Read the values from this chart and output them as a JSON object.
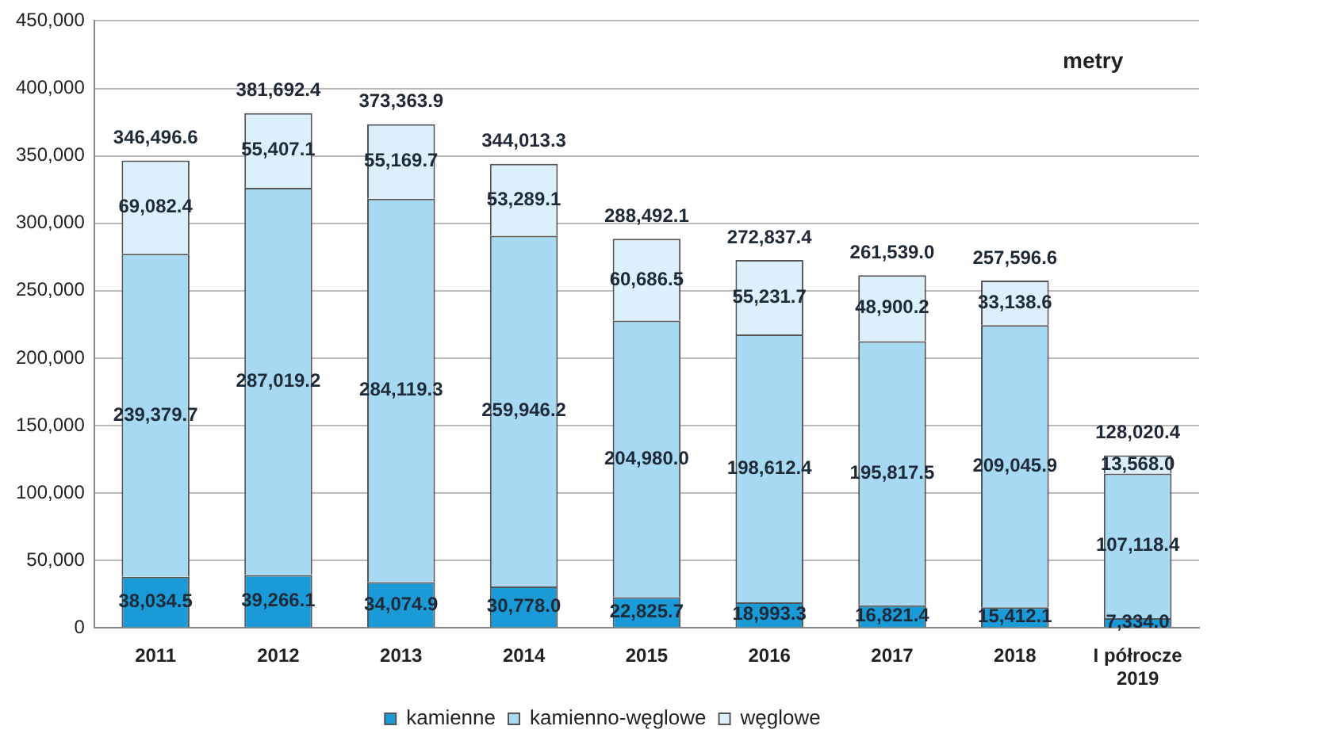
{
  "chart_data": {
    "type": "bar",
    "stacked": true,
    "categories": [
      "2011",
      "2012",
      "2013",
      "2014",
      "2015",
      "2016",
      "2017",
      "2018",
      "I półrocze 2019"
    ],
    "series": [
      {
        "name": "kamienne",
        "color": "#1a9ad6",
        "values": [
          38034.5,
          39266.1,
          34074.9,
          30778.0,
          22825.7,
          18993.3,
          16821.4,
          15412.1,
          7334.0
        ],
        "value_labels": [
          "38,034.5",
          "39,266.1",
          "34,074.9",
          "30,778.0",
          "22,825.7",
          "18,993.3",
          "16,821.4",
          "15,412.1",
          "7,334.0"
        ]
      },
      {
        "name": "kamienno-węglowe",
        "color": "#a7d9f3",
        "values": [
          239379.7,
          287019.2,
          284119.3,
          259946.2,
          204980.0,
          198612.4,
          195817.5,
          209045.9,
          107118.4
        ],
        "value_labels": [
          "239,379.7",
          "287,019.2",
          "284,119.3",
          "259,946.2",
          "204,980.0",
          "198,612.4",
          "195,817.5",
          "209,045.9",
          "107,118.4"
        ]
      },
      {
        "name": "węglowe",
        "color": "#dcf0fb",
        "values": [
          69082.4,
          55407.1,
          55169.7,
          53289.1,
          60686.5,
          55231.7,
          48900.2,
          33138.6,
          13568.0
        ],
        "value_labels": [
          "69,082.4",
          "55,407.1",
          "55,169.7",
          "53,289.1",
          "60,686.5",
          "55,231.7",
          "48,900.2",
          "33,138.6",
          "13,568.0"
        ]
      }
    ],
    "totals": [
      "346,496.6",
      "381,692.4",
      "373,363.9",
      "344,013.3",
      "288,492.1",
      "272,837.4",
      "261,539.0",
      "257,596.6",
      "128,020.4"
    ],
    "ylim": [
      0,
      450000
    ],
    "yticks": [
      0,
      {
        "value": 50000,
        "label": "50,000"
      },
      {
        "value": 100000,
        "label": "100,000"
      },
      {
        "value": 150000,
        "label": "150,000"
      },
      {
        "value": 200000,
        "label": "200,000"
      },
      {
        "value": 250000,
        "label": "250,000"
      },
      {
        "value": 300000,
        "label": "300,000"
      },
      {
        "value": 350000,
        "label": "350,000"
      },
      {
        "value": 400000,
        "label": "400,000"
      },
      {
        "value": 450000,
        "label": "450,000"
      }
    ],
    "grid": "y",
    "legend": "bottom",
    "annotations": [
      "metry"
    ]
  }
}
